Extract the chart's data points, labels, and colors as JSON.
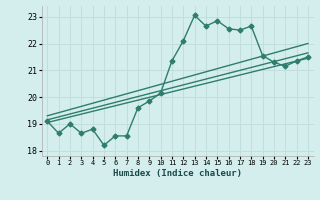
{
  "title": "",
  "xlabel": "Humidex (Indice chaleur)",
  "background_color": "#d4eeee",
  "grid_color": "#c0dede",
  "line_color": "#2e7d6e",
  "xlim": [
    -0.5,
    23.5
  ],
  "ylim": [
    17.8,
    23.4
  ],
  "yticks": [
    18,
    19,
    20,
    21,
    22,
    23
  ],
  "xticks": [
    0,
    1,
    2,
    3,
    4,
    5,
    6,
    7,
    8,
    9,
    10,
    11,
    12,
    13,
    14,
    15,
    16,
    17,
    18,
    19,
    20,
    21,
    22,
    23
  ],
  "series": [
    {
      "x": [
        0,
        1,
        2,
        3,
        4,
        5,
        6,
        7,
        8,
        9,
        10,
        11,
        12,
        13,
        14,
        15,
        16,
        17,
        18,
        19,
        20,
        21,
        22,
        23
      ],
      "y": [
        19.1,
        18.65,
        19.0,
        18.65,
        18.8,
        18.2,
        18.55,
        18.55,
        19.6,
        19.85,
        20.15,
        21.35,
        22.1,
        23.05,
        22.65,
        22.85,
        22.55,
        22.5,
        22.65,
        21.55,
        21.3,
        21.15,
        21.35,
        21.5
      ],
      "marker": true,
      "linewidth": 1.0,
      "markersize": 2.5
    },
    {
      "x": [
        0,
        23
      ],
      "y": [
        19.05,
        21.45
      ],
      "linewidth": 1.0
    },
    {
      "x": [
        0,
        23
      ],
      "y": [
        19.3,
        22.0
      ],
      "linewidth": 1.0
    },
    {
      "x": [
        0,
        23
      ],
      "y": [
        19.15,
        21.65
      ],
      "linewidth": 1.0
    }
  ]
}
